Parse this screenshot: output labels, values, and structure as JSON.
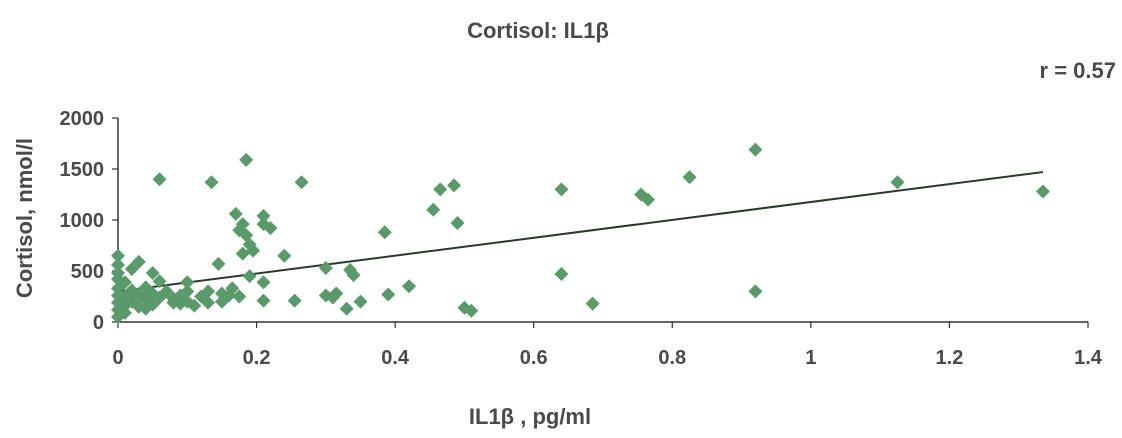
{
  "chart_data": {
    "type": "scatter",
    "title": "Cortisol: IL1β",
    "annotation": "r = 0.57",
    "xlabel": "IL1β , pg/ml",
    "ylabel": "Cortisol, nmol/l",
    "xlim": [
      0,
      1.4
    ],
    "ylim": [
      0,
      2000
    ],
    "x_ticks": [
      "0",
      "0.2",
      "0.4",
      "0.6",
      "0.8",
      "1",
      "1.2",
      "1.4"
    ],
    "y_ticks": [
      "0",
      "500",
      "1000",
      "1500",
      "2000"
    ],
    "grid": false,
    "legend": "none",
    "marker": "diamond",
    "point_color": "#5a9a6a",
    "line_color": "#2a3a2a",
    "trendline": {
      "x": [
        0,
        1.335
      ],
      "y": [
        300,
        1470
      ]
    },
    "series": [
      {
        "points": [
          [
            0.0,
            650
          ],
          [
            0.0,
            560
          ],
          [
            0.0,
            480
          ],
          [
            0.0,
            420
          ],
          [
            0.0,
            330
          ],
          [
            0.0,
            260
          ],
          [
            0.0,
            190
          ],
          [
            0.0,
            120
          ],
          [
            0.0,
            50
          ],
          [
            0.01,
            390
          ],
          [
            0.01,
            250
          ],
          [
            0.01,
            160
          ],
          [
            0.01,
            90
          ],
          [
            0.02,
            520
          ],
          [
            0.02,
            310
          ],
          [
            0.02,
            200
          ],
          [
            0.03,
            590
          ],
          [
            0.03,
            270
          ],
          [
            0.03,
            150
          ],
          [
            0.04,
            340
          ],
          [
            0.04,
            220
          ],
          [
            0.04,
            130
          ],
          [
            0.05,
            480
          ],
          [
            0.05,
            280
          ],
          [
            0.05,
            170
          ],
          [
            0.06,
            1400
          ],
          [
            0.06,
            400
          ],
          [
            0.06,
            240
          ],
          [
            0.07,
            300
          ],
          [
            0.08,
            190
          ],
          [
            0.08,
            230
          ],
          [
            0.09,
            260
          ],
          [
            0.09,
            180
          ],
          [
            0.1,
            390
          ],
          [
            0.1,
            300
          ],
          [
            0.1,
            200
          ],
          [
            0.11,
            160
          ],
          [
            0.12,
            250
          ],
          [
            0.13,
            300
          ],
          [
            0.13,
            190
          ],
          [
            0.135,
            1370
          ],
          [
            0.145,
            570
          ],
          [
            0.15,
            280
          ],
          [
            0.15,
            200
          ],
          [
            0.16,
            260
          ],
          [
            0.165,
            330
          ],
          [
            0.17,
            1060
          ],
          [
            0.175,
            900
          ],
          [
            0.175,
            250
          ],
          [
            0.18,
            960
          ],
          [
            0.18,
            670
          ],
          [
            0.185,
            1590
          ],
          [
            0.185,
            850
          ],
          [
            0.19,
            760
          ],
          [
            0.19,
            450
          ],
          [
            0.195,
            700
          ],
          [
            0.21,
            1040
          ],
          [
            0.21,
            960
          ],
          [
            0.21,
            390
          ],
          [
            0.21,
            210
          ],
          [
            0.22,
            920
          ],
          [
            0.24,
            650
          ],
          [
            0.255,
            210
          ],
          [
            0.265,
            1370
          ],
          [
            0.3,
            530
          ],
          [
            0.3,
            260
          ],
          [
            0.31,
            240
          ],
          [
            0.315,
            280
          ],
          [
            0.33,
            130
          ],
          [
            0.335,
            510
          ],
          [
            0.34,
            460
          ],
          [
            0.35,
            200
          ],
          [
            0.385,
            880
          ],
          [
            0.39,
            270
          ],
          [
            0.42,
            350
          ],
          [
            0.455,
            1100
          ],
          [
            0.465,
            1300
          ],
          [
            0.485,
            1340
          ],
          [
            0.49,
            970
          ],
          [
            0.5,
            140
          ],
          [
            0.51,
            110
          ],
          [
            0.64,
            1300
          ],
          [
            0.64,
            470
          ],
          [
            0.685,
            180
          ],
          [
            0.755,
            1250
          ],
          [
            0.765,
            1200
          ],
          [
            0.825,
            1420
          ],
          [
            0.92,
            1690
          ],
          [
            0.92,
            300
          ],
          [
            1.125,
            1370
          ],
          [
            1.335,
            1280
          ]
        ]
      }
    ]
  }
}
